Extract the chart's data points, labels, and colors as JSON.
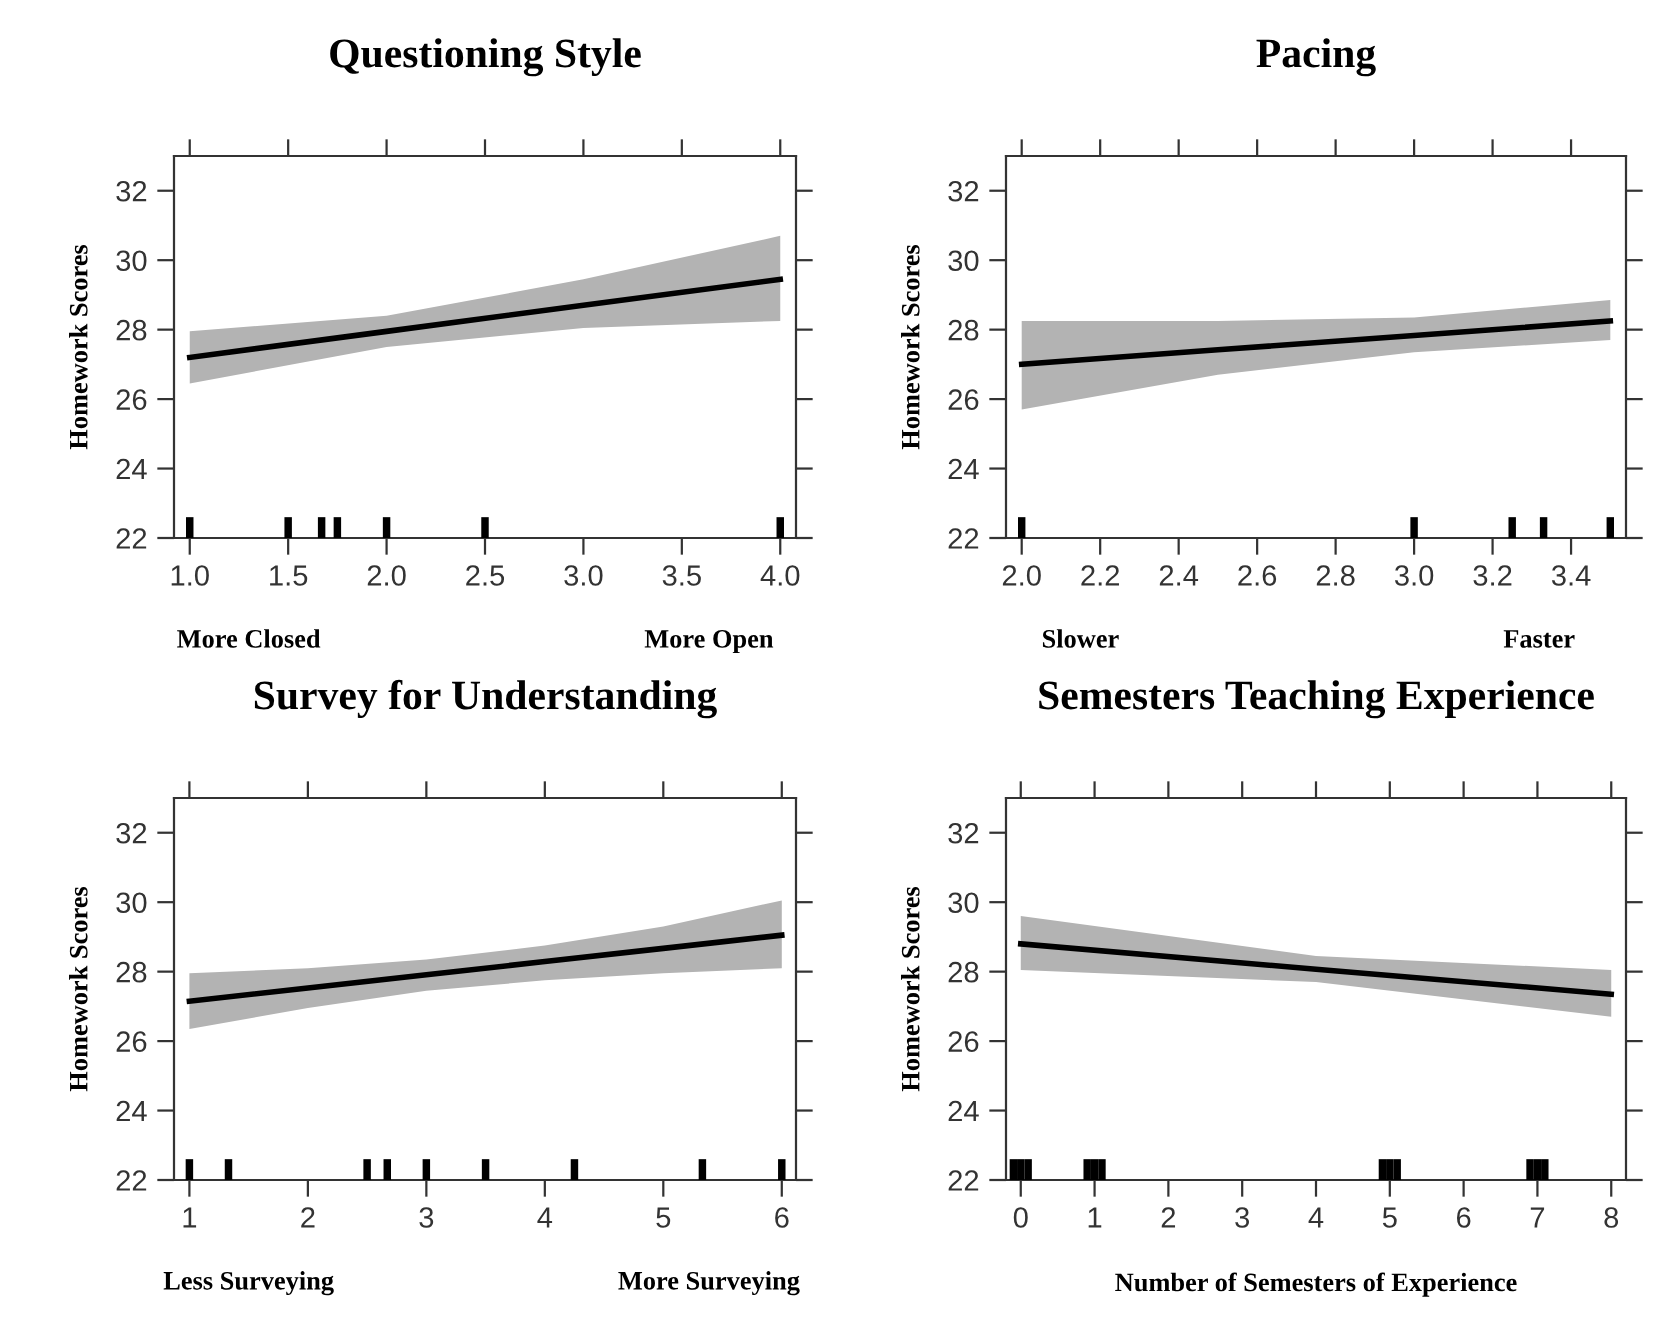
{
  "chart_data": [
    {
      "type": "line",
      "title": "Questioning Style",
      "ylabel": "Homework Scores",
      "annotations": [
        "More Closed",
        "More Open"
      ],
      "xlim": [
        0.92,
        4.08
      ],
      "xticks": [
        {
          "value": 1,
          "label": "1.0"
        },
        {
          "value": 1.5,
          "label": "1.5"
        },
        {
          "value": 2,
          "label": "2.0"
        },
        {
          "value": 2.5,
          "label": "2.5"
        },
        {
          "value": 3,
          "label": "3.0"
        },
        {
          "value": 3.5,
          "label": "3.5"
        },
        {
          "value": 4,
          "label": "4.0"
        }
      ],
      "ylim": [
        22,
        33
      ],
      "yticks": [
        22,
        24,
        26,
        28,
        30,
        32
      ],
      "series": [
        {
          "color": "#000000",
          "x": [
            1,
            2,
            3,
            4
          ],
          "values": [
            27.2,
            27.95,
            28.7,
            29.45
          ],
          "lower": [
            26.45,
            27.5,
            28.05,
            28.25
          ],
          "upper": [
            27.95,
            28.4,
            29.45,
            30.7
          ]
        },
        {
          "type": "bar",
          "color": "#000000",
          "x": [
            1.0,
            1.5,
            1.67,
            1.75,
            2.0,
            2.5,
            4.0
          ],
          "values": [
            0.6,
            0.6,
            0.6,
            0.6,
            0.6,
            0.6,
            0.6
          ],
          "base": [
            22,
            22,
            22,
            22,
            22,
            22,
            22
          ]
        }
      ]
    },
    {
      "type": "line",
      "title": "Pacing",
      "ylabel": "Homework Scores",
      "annotations": [
        "Slower",
        "Faster"
      ],
      "xlim": [
        1.96,
        3.54
      ],
      "xticks": [
        {
          "value": 2,
          "label": "2.0"
        },
        {
          "value": 2.2,
          "label": "2.2"
        },
        {
          "value": 2.4,
          "label": "2.4"
        },
        {
          "value": 2.6,
          "label": "2.6"
        },
        {
          "value": 2.8,
          "label": "2.8"
        },
        {
          "value": 3,
          "label": "3.0"
        },
        {
          "value": 3.2,
          "label": "3.2"
        },
        {
          "value": 3.4,
          "label": "3.4"
        }
      ],
      "ylim": [
        22,
        33
      ],
      "yticks": [
        22,
        24,
        26,
        28,
        30,
        32
      ],
      "series": [
        {
          "color": "#000000",
          "x": [
            2,
            2.5,
            3,
            3.5
          ],
          "values": [
            27.0,
            27.42,
            27.83,
            28.25
          ],
          "lower": [
            25.7,
            26.7,
            27.35,
            27.7
          ],
          "upper": [
            28.25,
            28.25,
            28.35,
            28.85
          ]
        },
        {
          "type": "bar",
          "color": "#000000",
          "x": [
            2.0,
            3.0,
            3.25,
            3.33,
            3.5
          ],
          "values": [
            0.6,
            0.6,
            0.6,
            0.6,
            0.6
          ],
          "base": [
            22,
            22,
            22,
            22,
            22
          ]
        }
      ]
    },
    {
      "type": "line",
      "title": "Survey for Understanding",
      "ylabel": "Homework Scores",
      "annotations": [
        "Less Surveying",
        "More Surveying"
      ],
      "xlim": [
        0.87,
        6.12
      ],
      "xticks": [
        1,
        2,
        3,
        4,
        5,
        6
      ],
      "ylim": [
        22,
        33
      ],
      "yticks": [
        22,
        24,
        26,
        28,
        30,
        32
      ],
      "series": [
        {
          "color": "#000000",
          "x": [
            1,
            2,
            3,
            4,
            5,
            6
          ],
          "values": [
            27.15,
            27.53,
            27.91,
            28.29,
            28.67,
            29.05
          ],
          "lower": [
            26.35,
            26.95,
            27.45,
            27.75,
            27.95,
            28.1
          ],
          "upper": [
            27.95,
            28.1,
            28.35,
            28.75,
            29.3,
            30.05
          ]
        },
        {
          "type": "bar",
          "color": "#000000",
          "x": [
            1,
            1.33,
            2.5,
            2.67,
            3,
            3.5,
            4.25,
            5.33,
            6
          ],
          "values": [
            0.6,
            0.6,
            0.6,
            0.6,
            0.6,
            0.6,
            0.6,
            0.6,
            0.6
          ],
          "base": [
            22,
            22,
            22,
            22,
            22,
            22,
            22,
            22,
            22
          ]
        }
      ]
    },
    {
      "type": "line",
      "title": "Semesters Teaching Experience",
      "ylabel": "Homework Scores",
      "xlabel": "Number of Semesters of Experience",
      "xlim": [
        -0.2,
        8.2
      ],
      "xticks": [
        0,
        1,
        2,
        3,
        4,
        5,
        6,
        7,
        8
      ],
      "ylim": [
        22,
        33
      ],
      "yticks": [
        22,
        24,
        26,
        28,
        30,
        32
      ],
      "series": [
        {
          "color": "#000000",
          "x": [
            0,
            4,
            8
          ],
          "values": [
            28.8,
            28.07,
            27.35
          ],
          "lower": [
            28.05,
            27.7,
            26.7
          ],
          "upper": [
            29.6,
            28.45,
            28.05
          ]
        },
        {
          "type": "bar",
          "color": "#000000",
          "x": [
            -0.1,
            0,
            0.1,
            0.9,
            1.0,
            1.1,
            4.9,
            5.0,
            5.1,
            6.9,
            7.0,
            7.1
          ],
          "values": [
            0.6,
            0.6,
            0.6,
            0.6,
            0.6,
            0.6,
            0.6,
            0.6,
            0.6,
            0.6,
            0.6,
            0.6
          ],
          "base": [
            22,
            22,
            22,
            22,
            22,
            22,
            22,
            22,
            22,
            22,
            22,
            22
          ]
        }
      ]
    }
  ]
}
